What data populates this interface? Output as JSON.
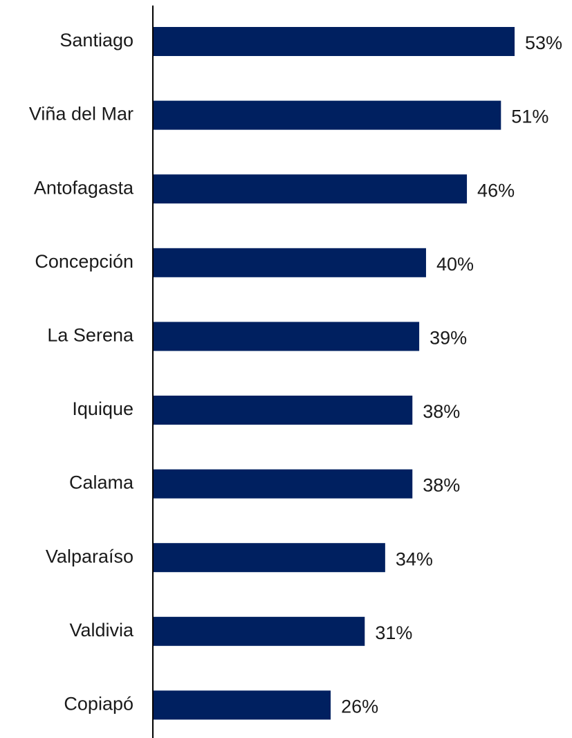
{
  "chart_data": {
    "type": "barh",
    "categories": [
      "Santiago",
      "Viña del Mar",
      "Antofagasta",
      "Concepción",
      "La Serena",
      "Iquique",
      "Calama",
      "Valparaíso",
      "Valdivia",
      "Copiapó"
    ],
    "values": [
      53,
      51,
      46,
      40,
      39,
      38,
      38,
      34,
      31,
      26
    ],
    "value_labels": [
      "53%",
      "51%",
      "46%",
      "40%",
      "39%",
      "38%",
      "38%",
      "34%",
      "31%",
      "26%"
    ],
    "color": "#002060"
  }
}
